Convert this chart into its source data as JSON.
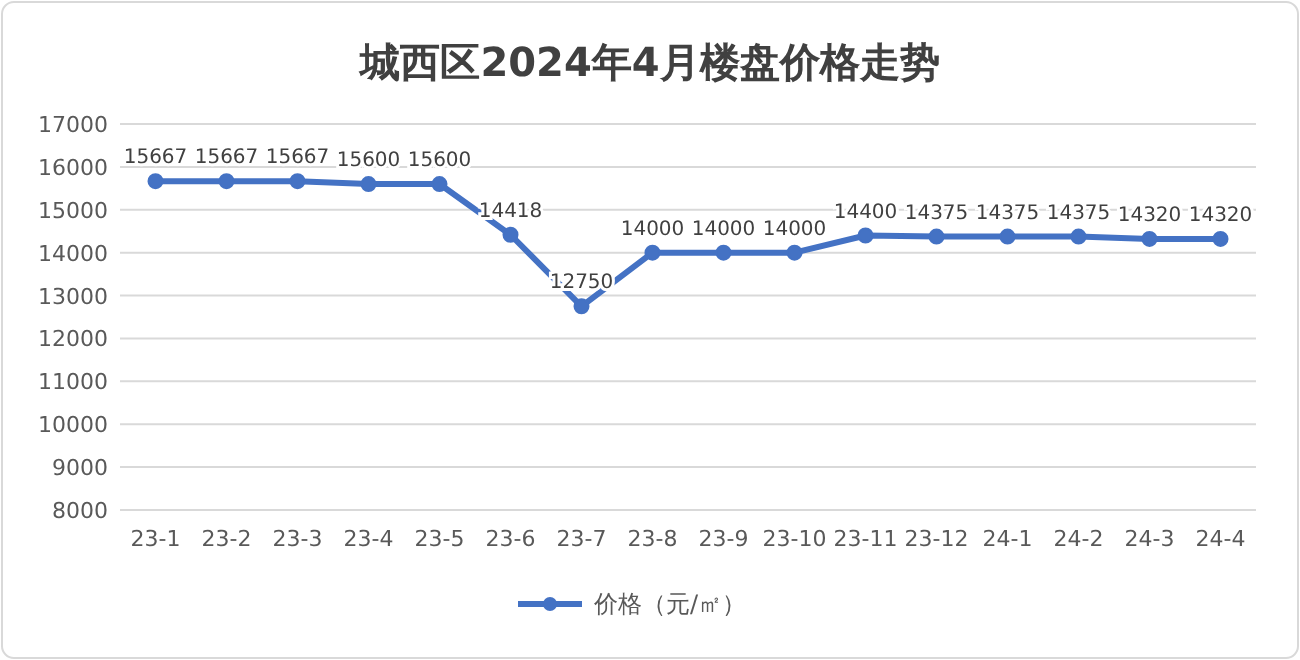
{
  "chart_data": {
    "type": "line",
    "title": "城西区2024年4月楼盘价格走势",
    "categories": [
      "23-1",
      "23-2",
      "23-3",
      "23-4",
      "23-5",
      "23-6",
      "23-7",
      "23-8",
      "23-9",
      "23-10",
      "23-11",
      "23-12",
      "24-1",
      "24-2",
      "24-3",
      "24-4"
    ],
    "series": [
      {
        "name": "价格（元/㎡）",
        "color": "#4472c4",
        "values": [
          15667,
          15667,
          15667,
          15600,
          15600,
          14418,
          12750,
          14000,
          14000,
          14000,
          14400,
          14375,
          14375,
          14375,
          14320,
          14320
        ]
      }
    ],
    "ylim": [
      8000,
      17000
    ],
    "yticks": [
      8000,
      9000,
      10000,
      11000,
      12000,
      13000,
      14000,
      15000,
      16000,
      17000
    ],
    "grid": "y",
    "legend": "bottom",
    "marker": "circle",
    "data_labels": true
  }
}
